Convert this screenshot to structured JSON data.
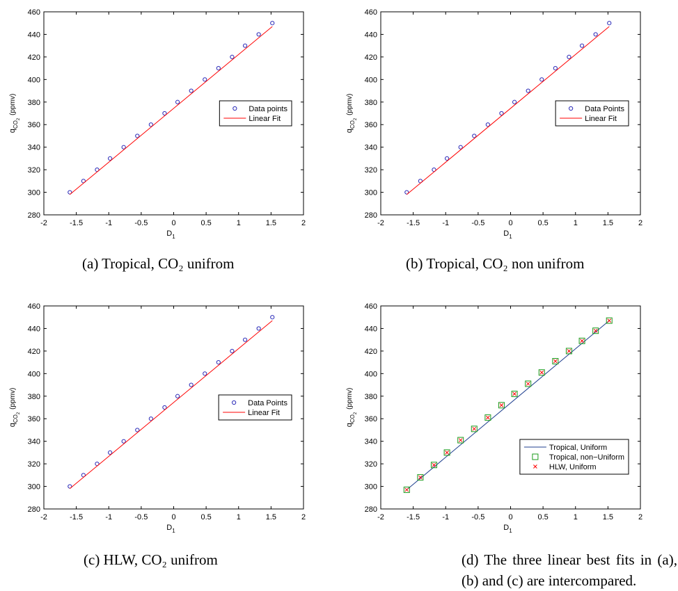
{
  "chart_data": [
    {
      "type": "scatter",
      "caption": "(a)  Tropical, CO₂ unifrom",
      "xlabel": {
        "text": "D",
        "sub": "1"
      },
      "ylabel": {
        "text": "q",
        "sub": "CO",
        "subsub": "2",
        "unit": "(ppmv)"
      },
      "xlim": [
        -2,
        2
      ],
      "ylim": [
        280,
        460
      ],
      "xticks": [
        -2,
        -1.5,
        -1,
        -0.5,
        0,
        0.5,
        1,
        1.5,
        2
      ],
      "yticks": [
        280,
        300,
        320,
        340,
        360,
        380,
        400,
        420,
        440,
        460
      ],
      "legend": "east",
      "series": [
        {
          "name": "Data points",
          "color": "#2a2ab8",
          "marker": "circle",
          "x": [
            -1.6,
            -1.39,
            -1.18,
            -0.98,
            -0.77,
            -0.56,
            -0.35,
            -0.14,
            0.06,
            0.27,
            0.48,
            0.69,
            0.9,
            1.1,
            1.31,
            1.52
          ],
          "values": [
            300,
            310,
            320,
            330,
            340,
            350,
            360,
            370,
            380,
            390,
            400,
            410,
            420,
            430,
            440,
            450
          ]
        },
        {
          "name": "Linear Fit",
          "color": "#ff0000",
          "marker": "line",
          "x": [
            -1.6,
            1.52
          ],
          "values": [
            298,
            447
          ]
        }
      ]
    },
    {
      "type": "scatter",
      "caption": "(b)  Tropical, CO₂ non unifrom",
      "xlabel": {
        "text": "D",
        "sub": "1"
      },
      "ylabel": {
        "text": "q",
        "sub": "CO",
        "subsub": "2",
        "unit": "(ppmv)"
      },
      "xlim": [
        -2,
        2
      ],
      "ylim": [
        280,
        460
      ],
      "xticks": [
        -2,
        -1.5,
        -1,
        -0.5,
        0,
        0.5,
        1,
        1.5,
        2
      ],
      "yticks": [
        280,
        300,
        320,
        340,
        360,
        380,
        400,
        420,
        440,
        460
      ],
      "legend": "east",
      "series": [
        {
          "name": "Data Points",
          "color": "#2a2ab8",
          "marker": "circle",
          "x": [
            -1.6,
            -1.39,
            -1.18,
            -0.98,
            -0.77,
            -0.56,
            -0.35,
            -0.14,
            0.06,
            0.27,
            0.48,
            0.69,
            0.9,
            1.1,
            1.31,
            1.52
          ],
          "values": [
            300,
            310,
            320,
            330,
            340,
            350,
            360,
            370,
            380,
            390,
            400,
            410,
            420,
            430,
            440,
            450
          ]
        },
        {
          "name": "Linear Fit",
          "color": "#ff0000",
          "marker": "line",
          "x": [
            -1.6,
            1.52
          ],
          "values": [
            298,
            447
          ]
        }
      ]
    },
    {
      "type": "scatter",
      "caption": "(c)  HLW, CO₂ unifrom",
      "xlabel": {
        "text": "D",
        "sub": "1"
      },
      "ylabel": {
        "text": "q",
        "sub": "CO",
        "subsub": "2",
        "unit": "(ppmv)"
      },
      "xlim": [
        -2,
        2
      ],
      "ylim": [
        280,
        460
      ],
      "xticks": [
        -2,
        -1.5,
        -1,
        -0.5,
        0,
        0.5,
        1,
        1.5,
        2
      ],
      "yticks": [
        280,
        300,
        320,
        340,
        360,
        380,
        400,
        420,
        440,
        460
      ],
      "legend": "east",
      "series": [
        {
          "name": "Data Points",
          "color": "#2a2ab8",
          "marker": "circle",
          "x": [
            -1.6,
            -1.39,
            -1.18,
            -0.98,
            -0.77,
            -0.56,
            -0.35,
            -0.14,
            0.06,
            0.27,
            0.48,
            0.69,
            0.9,
            1.1,
            1.31,
            1.52
          ],
          "values": [
            300,
            310,
            320,
            330,
            340,
            350,
            360,
            370,
            380,
            390,
            400,
            410,
            420,
            430,
            440,
            450
          ]
        },
        {
          "name": "Linear Fit",
          "color": "#ff0000",
          "marker": "line",
          "x": [
            -1.6,
            1.52
          ],
          "values": [
            298,
            447
          ]
        }
      ]
    },
    {
      "type": "scatter",
      "caption": "(d)  The three linear best fits in (a), (b) and (c) are intercompared.",
      "xlabel": {
        "text": "D",
        "sub": "1"
      },
      "ylabel": {
        "text": "q",
        "sub": "CO",
        "subsub": "2",
        "unit": "(ppmv)"
      },
      "xlim": [
        -2,
        2
      ],
      "ylim": [
        280,
        460
      ],
      "xticks": [
        -2,
        -1.5,
        -1,
        -0.5,
        0,
        0.5,
        1,
        1.5,
        2
      ],
      "yticks": [
        280,
        300,
        320,
        340,
        360,
        380,
        400,
        420,
        440,
        460
      ],
      "legend": "southeast",
      "series": [
        {
          "name": "Tropical, Uniform",
          "color": "#1f3f8f",
          "marker": "line",
          "x": [
            -1.6,
            1.52
          ],
          "values": [
            297,
            447
          ]
        },
        {
          "name": "Tropical, non−Uniform",
          "color": "#1a9a1a",
          "marker": "square",
          "x": [
            -1.6,
            -1.39,
            -1.18,
            -0.98,
            -0.77,
            -0.56,
            -0.35,
            -0.14,
            0.06,
            0.27,
            0.48,
            0.69,
            0.9,
            1.1,
            1.31,
            1.52
          ],
          "values": [
            297,
            308,
            319,
            330,
            341,
            351,
            361,
            372,
            382,
            391,
            401,
            411,
            420,
            429,
            438,
            447
          ]
        },
        {
          "name": "HLW, Uniform",
          "color": "#ff0000",
          "marker": "cross",
          "x": [
            -1.6,
            -1.39,
            -1.18,
            -0.98,
            -0.77,
            -0.56,
            -0.35,
            -0.14,
            0.06,
            0.27,
            0.48,
            0.69,
            0.9,
            1.1,
            1.31,
            1.52
          ],
          "values": [
            297,
            308,
            319,
            330,
            341,
            351,
            361,
            372,
            382,
            391,
            401,
            411,
            420,
            429,
            438,
            447
          ]
        }
      ]
    }
  ]
}
